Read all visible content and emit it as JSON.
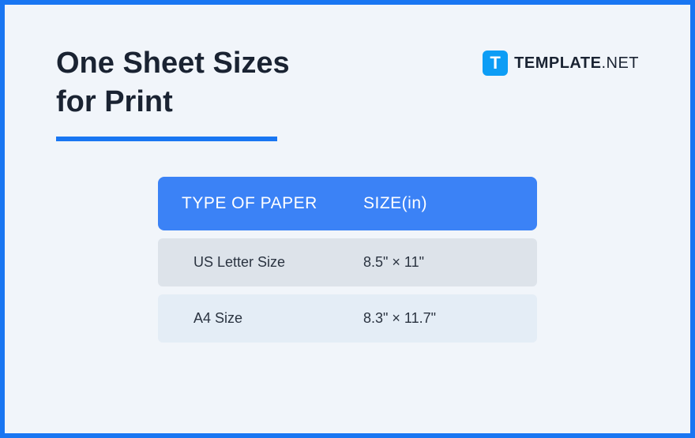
{
  "title": {
    "line1": "One Sheet Sizes",
    "line2": "for Print"
  },
  "logo": {
    "icon_letter": "T",
    "name": "TEMPLATE",
    "suffix": ".NET"
  },
  "colors": {
    "frame_border": "#1976f2",
    "background": "#f1f5fa",
    "title_text": "#1a2332",
    "underline": "#1976f2",
    "logo_icon_bg": "#0d9df5",
    "table_header_bg": "#3b82f6",
    "table_header_text": "#ffffff",
    "row_bg_0": "#dde3ea",
    "row_bg_1": "#e4edf6",
    "row_text": "#2a3340"
  },
  "table": {
    "columns": [
      "TYPE OF PAPER",
      "SIZE(in)"
    ],
    "rows": [
      {
        "type": "US Letter Size",
        "size": "8.5\" × 11\""
      },
      {
        "type": "A4 Size",
        "size": "8.3\" × 11.7\""
      }
    ]
  }
}
